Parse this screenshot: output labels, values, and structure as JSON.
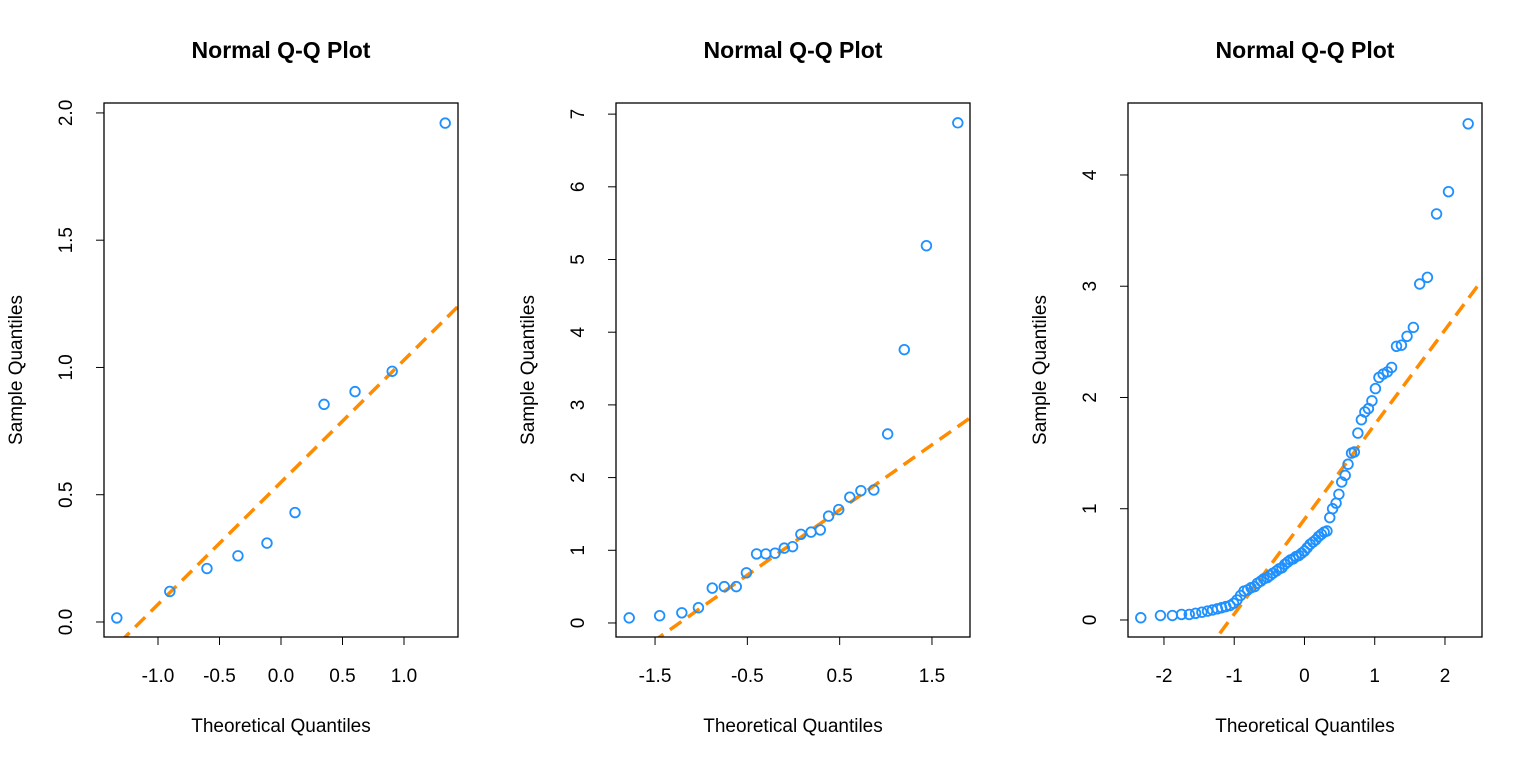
{
  "chart_data": [
    {
      "type": "scatter",
      "title": "Normal Q-Q Plot",
      "xlabel": "Theoretical Quantiles",
      "ylabel": "Sample Quantiles",
      "x": [
        -1.335,
        -0.904,
        -0.602,
        -0.35,
        -0.114,
        0.114,
        0.35,
        0.602,
        0.904,
        1.335
      ],
      "y": [
        0.016,
        0.12,
        0.21,
        0.26,
        0.31,
        0.43,
        0.855,
        0.905,
        0.985,
        1.96
      ],
      "color": "#1e90ff",
      "qqline": {
        "intercept": 0.549,
        "slope": 0.48,
        "color": "#ff8c00"
      },
      "xlim": [
        -1.439,
        1.439
      ],
      "ylim": [
        -0.059,
        2.039
      ],
      "xticks": [
        {
          "value": -1,
          "label": "-1.0"
        },
        -0.5,
        {
          "value": 0,
          "label": "0.0"
        },
        0.5,
        {
          "value": 1,
          "label": "1.0"
        }
      ],
      "yticks": [
        {
          "value": 0,
          "label": "0.0"
        },
        0.5,
        {
          "value": 1,
          "label": "1.0"
        },
        1.5,
        {
          "value": 2,
          "label": "2.0"
        }
      ]
    },
    {
      "type": "scatter",
      "title": "Normal Q-Q Plot",
      "xlabel": "Theoretical Quantiles",
      "ylabel": "Sample Quantiles",
      "x": [
        -1.78,
        -1.45,
        -1.21,
        -1.03,
        -0.88,
        -0.75,
        -0.62,
        -0.51,
        -0.4,
        -0.3,
        -0.2,
        -0.1,
        -0.01,
        0.08,
        0.19,
        0.29,
        0.38,
        0.49,
        0.61,
        0.73,
        0.87,
        1.02,
        1.2,
        1.44,
        1.78
      ],
      "y": [
        0.07,
        0.1,
        0.14,
        0.21,
        0.48,
        0.5,
        0.5,
        0.69,
        0.95,
        0.95,
        0.96,
        1.03,
        1.05,
        1.22,
        1.25,
        1.28,
        1.47,
        1.56,
        1.73,
        1.82,
        1.83,
        2.6,
        3.76,
        5.19,
        6.88
      ],
      "color": "#1e90ff",
      "qqline": {
        "intercept": 1.107,
        "slope": 0.896,
        "color": "#ff8c00"
      },
      "xlim": [
        -1.923,
        1.912
      ],
      "ylim": [
        -0.193,
        7.153
      ],
      "xticks": [
        -1.5,
        -0.5,
        0.5,
        1.5
      ],
      "yticks": [
        0,
        1,
        2,
        3,
        4,
        5,
        6,
        7
      ]
    },
    {
      "type": "scatter",
      "title": "Normal Q-Q Plot",
      "xlabel": "Theoretical Quantiles",
      "ylabel": "Sample Quantiles",
      "x": [
        -2.33,
        -2.05,
        -1.88,
        -1.75,
        -1.64,
        -1.55,
        -1.46,
        -1.38,
        -1.31,
        -1.24,
        -1.18,
        -1.12,
        -1.06,
        -1.01,
        -0.96,
        -0.91,
        -0.86,
        -0.81,
        -0.76,
        -0.71,
        -0.67,
        -0.62,
        -0.58,
        -0.53,
        -0.49,
        -0.45,
        -0.4,
        -0.36,
        -0.32,
        -0.28,
        -0.24,
        -0.2,
        -0.16,
        -0.12,
        -0.08,
        -0.04,
        0.0,
        0.04,
        0.08,
        0.12,
        0.16,
        0.2,
        0.24,
        0.28,
        0.32,
        0.36,
        0.4,
        0.45,
        0.49,
        0.53,
        0.58,
        0.62,
        0.67,
        0.71,
        0.76,
        0.81,
        0.86,
        0.91,
        0.96,
        1.01,
        1.06,
        1.12,
        1.18,
        1.24,
        1.31,
        1.38,
        1.46,
        1.55,
        1.64,
        1.75,
        1.88,
        2.05,
        2.33
      ],
      "y": [
        0.02,
        0.04,
        0.04,
        0.05,
        0.05,
        0.06,
        0.07,
        0.08,
        0.09,
        0.1,
        0.11,
        0.12,
        0.13,
        0.15,
        0.18,
        0.22,
        0.26,
        0.27,
        0.29,
        0.3,
        0.33,
        0.35,
        0.37,
        0.38,
        0.4,
        0.42,
        0.44,
        0.46,
        0.47,
        0.5,
        0.52,
        0.54,
        0.55,
        0.57,
        0.58,
        0.6,
        0.62,
        0.65,
        0.68,
        0.7,
        0.72,
        0.75,
        0.77,
        0.79,
        0.8,
        0.92,
        1.0,
        1.05,
        1.13,
        1.24,
        1.3,
        1.4,
        1.5,
        1.51,
        1.68,
        1.8,
        1.87,
        1.9,
        1.97,
        2.08,
        2.18,
        2.21,
        2.23,
        2.27,
        2.46,
        2.47,
        2.55,
        2.63,
        3.02,
        3.08,
        3.65,
        3.85,
        4.46
      ],
      "color": "#1e90ff",
      "qqline": {
        "intercept": 0.905,
        "slope": 0.851,
        "color": "#ff8c00"
      },
      "xlim": [
        -2.512,
        2.527
      ],
      "ylim": [
        -0.153,
        4.647
      ],
      "xticks": [
        -2,
        -1,
        0,
        1,
        2
      ],
      "yticks": [
        0,
        1,
        2,
        3,
        4
      ]
    }
  ]
}
